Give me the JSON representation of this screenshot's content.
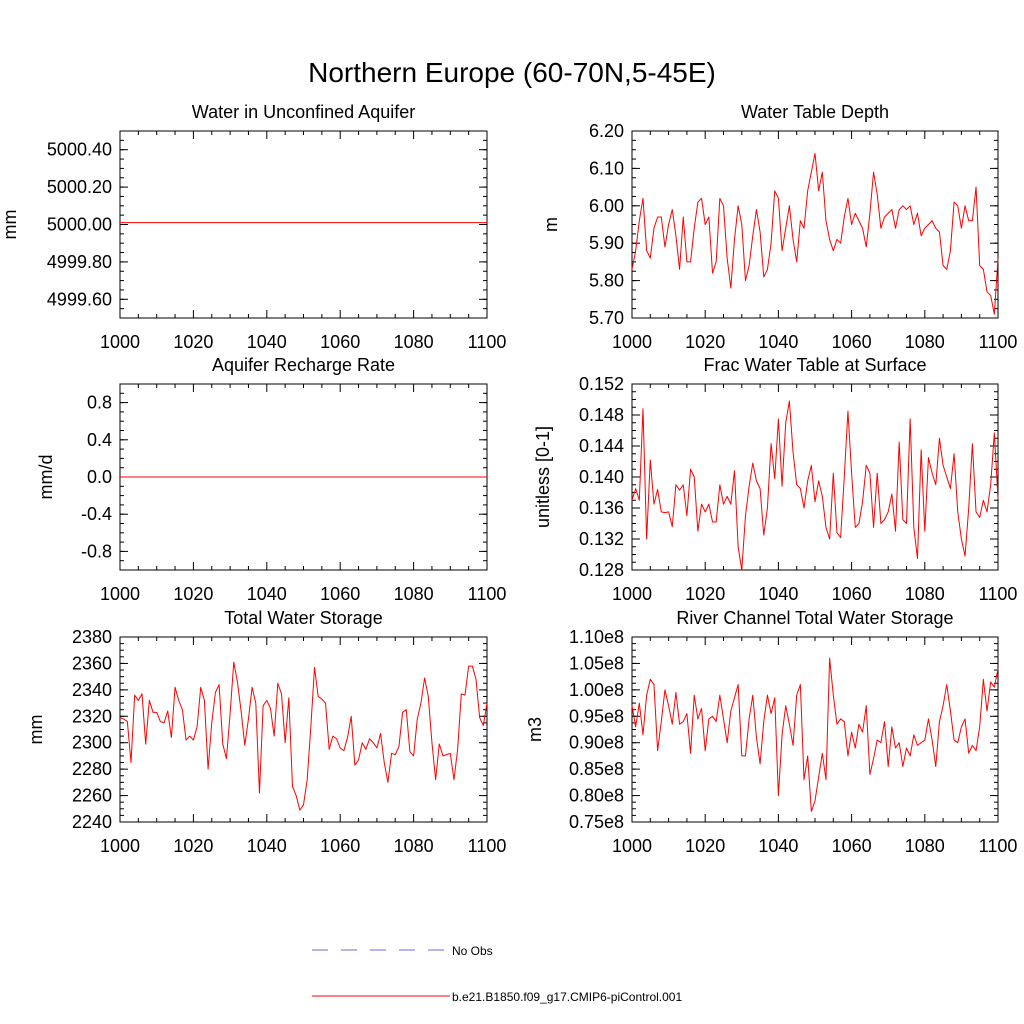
{
  "figure": {
    "title": "Northern Europe (60-70N,5-45E)"
  },
  "legend": {
    "entries": [
      {
        "label": "No Obs",
        "color": "#6b6bd6",
        "style": "dashed"
      },
      {
        "label": "b.e21.B1850.f09_g17.CMIP6-piControl.001",
        "color": "#ff0000",
        "style": "solid"
      }
    ]
  },
  "chart_data": [
    {
      "type": "line",
      "title": "Water in Unconfined Aquifer",
      "ylabel": "mm",
      "xlim": [
        1000,
        1100
      ],
      "ylim": [
        4999.5,
        5000.5
      ],
      "xticks": [
        1000,
        1020,
        1040,
        1060,
        1080,
        1100
      ],
      "yticks": [
        4999.6,
        4999.8,
        5000.0,
        5000.2,
        5000.4
      ],
      "ytick_labels": [
        "4999.60",
        "4999.80",
        "5000.00",
        "5000.20",
        "5000.40"
      ],
      "series": [
        {
          "name": "b.e21.B1850.f09_g17.CMIP6-piControl.001",
          "color": "#ff0000",
          "values": [
            5000.01,
            5000.01,
            5000.01,
            5000.01,
            5000.01,
            5000.01,
            5000.01,
            5000.01,
            5000.01,
            5000.01,
            5000.01,
            5000.01,
            5000.01,
            5000.01,
            5000.01,
            5000.01,
            5000.01,
            5000.01,
            5000.01,
            5000.01,
            5000.01,
            5000.01,
            5000.01,
            5000.01,
            5000.01,
            5000.01,
            5000.01,
            5000.01,
            5000.01,
            5000.01,
            5000.01,
            5000.01,
            5000.01,
            5000.01,
            5000.01,
            5000.01,
            5000.01,
            5000.01,
            5000.01,
            5000.01,
            5000.01,
            5000.01,
            5000.01,
            5000.01,
            5000.01,
            5000.01,
            5000.01,
            5000.01,
            5000.01,
            5000.01,
            5000.01,
            5000.01,
            5000.01,
            5000.01,
            5000.01,
            5000.01,
            5000.01,
            5000.01,
            5000.01,
            5000.01,
            5000.01,
            5000.01,
            5000.01,
            5000.01,
            5000.01,
            5000.01,
            5000.01,
            5000.01,
            5000.01,
            5000.01,
            5000.01,
            5000.01,
            5000.01,
            5000.01,
            5000.01,
            5000.01,
            5000.01,
            5000.01,
            5000.01,
            5000.01,
            5000.01,
            5000.01,
            5000.01,
            5000.01,
            5000.01,
            5000.01,
            5000.01,
            5000.01,
            5000.01,
            5000.01,
            5000.01,
            5000.01,
            5000.01,
            5000.01,
            5000.01,
            5000.01,
            5000.01,
            5000.01,
            5000.01,
            5000.01,
            5000.01
          ]
        }
      ]
    },
    {
      "type": "line",
      "title": "Water Table Depth",
      "ylabel": "m",
      "xlim": [
        1000,
        1100
      ],
      "ylim": [
        5.7,
        6.2
      ],
      "xticks": [
        1000,
        1020,
        1040,
        1060,
        1080,
        1100
      ],
      "yticks": [
        5.7,
        5.8,
        5.9,
        6.0,
        6.1,
        6.2
      ],
      "ytick_labels": [
        "5.70",
        "5.80",
        "5.90",
        "6.00",
        "6.10",
        "6.20"
      ],
      "series": [
        {
          "name": "b.e21.B1850.f09_g17.CMIP6-piControl.001",
          "color": "#ff0000",
          "values": [
            5.83,
            5.88,
            5.96,
            6.02,
            5.88,
            5.86,
            5.94,
            5.97,
            5.97,
            5.89,
            5.95,
            5.99,
            5.92,
            5.83,
            5.97,
            5.85,
            5.85,
            5.94,
            6.01,
            6.02,
            5.95,
            5.97,
            5.82,
            5.85,
            6.02,
            6.0,
            5.86,
            5.78,
            5.91,
            6.0,
            5.95,
            5.8,
            5.84,
            5.92,
            5.99,
            5.93,
            5.81,
            5.83,
            5.9,
            6.04,
            6.02,
            5.88,
            5.94,
            6.0,
            5.91,
            5.85,
            5.96,
            5.94,
            6.04,
            6.09,
            6.14,
            6.04,
            6.09,
            5.96,
            5.91,
            5.88,
            5.91,
            5.9,
            5.97,
            6.02,
            5.95,
            5.98,
            5.96,
            5.94,
            5.89,
            5.98,
            6.09,
            6.03,
            5.94,
            5.97,
            5.98,
            5.99,
            5.94,
            5.99,
            6.0,
            5.99,
            6.0,
            5.95,
            5.98,
            5.92,
            5.94,
            5.95,
            5.96,
            5.94,
            5.93,
            5.84,
            5.83,
            5.88,
            6.01,
            6.0,
            5.94,
            6.0,
            5.96,
            5.96,
            6.05,
            5.84,
            5.83,
            5.77,
            5.76,
            5.71,
            5.86
          ]
        }
      ]
    },
    {
      "type": "line",
      "title": "Aquifer Recharge Rate",
      "ylabel": "mm/d",
      "xlim": [
        1000,
        1100
      ],
      "ylim": [
        -1.0,
        1.0
      ],
      "xticks": [
        1000,
        1020,
        1040,
        1060,
        1080,
        1100
      ],
      "yticks": [
        -0.8,
        -0.4,
        0.0,
        0.4,
        0.8
      ],
      "ytick_labels": [
        "-0.8",
        "-0.4",
        "0.0",
        "0.4",
        "0.8"
      ],
      "series": [
        {
          "name": "b.e21.B1850.f09_g17.CMIP6-piControl.001",
          "color": "#ff0000",
          "values": [
            0,
            0,
            0,
            0,
            0,
            0,
            0,
            0,
            0,
            0,
            0,
            0,
            0,
            0,
            0,
            0,
            0,
            0,
            0,
            0,
            0,
            0,
            0,
            0,
            0,
            0,
            0,
            0,
            0,
            0,
            0,
            0,
            0,
            0,
            0,
            0,
            0,
            0,
            0,
            0,
            0,
            0,
            0,
            0,
            0,
            0,
            0,
            0,
            0,
            0,
            0,
            0,
            0,
            0,
            0,
            0,
            0,
            0,
            0,
            0,
            0,
            0,
            0,
            0,
            0,
            0,
            0,
            0,
            0,
            0,
            0,
            0,
            0,
            0,
            0,
            0,
            0,
            0,
            0,
            0,
            0,
            0,
            0,
            0,
            0,
            0,
            0,
            0,
            0,
            0,
            0,
            0,
            0,
            0,
            0,
            0,
            0,
            0,
            0,
            0,
            0
          ]
        }
      ]
    },
    {
      "type": "line",
      "title": "Frac Water Table at Surface",
      "ylabel": "unitless [0-1]",
      "xlim": [
        1000,
        1100
      ],
      "ylim": [
        0.128,
        0.152
      ],
      "xticks": [
        1000,
        1020,
        1040,
        1060,
        1080,
        1100
      ],
      "yticks": [
        0.128,
        0.132,
        0.136,
        0.14,
        0.144,
        0.148,
        0.152
      ],
      "ytick_labels": [
        "0.128",
        "0.132",
        "0.136",
        "0.140",
        "0.144",
        "0.148",
        "0.152"
      ],
      "series": [
        {
          "name": "b.e21.B1850.f09_g17.CMIP6-piControl.001",
          "color": "#ff0000",
          "values": [
            0.137,
            0.1385,
            0.137,
            0.1488,
            0.132,
            0.1422,
            0.1365,
            0.1384,
            0.1355,
            0.1354,
            0.1355,
            0.1336,
            0.139,
            0.1383,
            0.139,
            0.135,
            0.141,
            0.14,
            0.133,
            0.1365,
            0.1355,
            0.1365,
            0.1342,
            0.1342,
            0.139,
            0.1365,
            0.1375,
            0.1365,
            0.1408,
            0.131,
            0.128,
            0.135,
            0.1388,
            0.1418,
            0.1395,
            0.1385,
            0.1325,
            0.136,
            0.1443,
            0.1398,
            0.1475,
            0.1388,
            0.147,
            0.1498,
            0.1432,
            0.139,
            0.1385,
            0.136,
            0.1395,
            0.1415,
            0.1368,
            0.1395,
            0.1375,
            0.1335,
            0.132,
            0.1405,
            0.1328,
            0.1322,
            0.14,
            0.1485,
            0.1405,
            0.1335,
            0.134,
            0.1368,
            0.1415,
            0.1405,
            0.1335,
            0.1405,
            0.134,
            0.1345,
            0.1355,
            0.1378,
            0.133,
            0.1445,
            0.1345,
            0.134,
            0.1475,
            0.1335,
            0.1295,
            0.1435,
            0.133,
            0.1425,
            0.1405,
            0.139,
            0.145,
            0.1415,
            0.14,
            0.1385,
            0.143,
            0.1355,
            0.132,
            0.1298,
            0.136,
            0.1443,
            0.1355,
            0.1348,
            0.137,
            0.1355,
            0.139,
            0.1457,
            0.1372
          ]
        }
      ]
    },
    {
      "type": "line",
      "title": "Total Water Storage",
      "ylabel": "mm",
      "xlim": [
        1000,
        1100
      ],
      "ylim": [
        2240,
        2380
      ],
      "xticks": [
        1000,
        1020,
        1040,
        1060,
        1080,
        1100
      ],
      "yticks": [
        2240,
        2260,
        2280,
        2300,
        2320,
        2340,
        2360,
        2380
      ],
      "ytick_labels": [
        "2240",
        "2260",
        "2280",
        "2300",
        "2320",
        "2340",
        "2360",
        "2380"
      ],
      "series": [
        {
          "name": "b.e21.B1850.f09_g17.CMIP6-piControl.001",
          "color": "#ff0000",
          "values": [
            2319,
            2318,
            2316,
            2285,
            2336,
            2332,
            2337,
            2299,
            2332,
            2323,
            2323,
            2316,
            2315,
            2324,
            2304,
            2342,
            2332,
            2325,
            2302,
            2305,
            2302,
            2312,
            2342,
            2332,
            2280,
            2315,
            2338,
            2344,
            2299,
            2288,
            2322,
            2361,
            2346,
            2324,
            2298,
            2318,
            2342,
            2330,
            2262,
            2328,
            2332,
            2326,
            2305,
            2345,
            2337,
            2300,
            2334,
            2267,
            2260,
            2249,
            2253,
            2272,
            2312,
            2357,
            2335,
            2333,
            2330,
            2295,
            2305,
            2303,
            2296,
            2294,
            2304,
            2320,
            2283,
            2287,
            2300,
            2295,
            2303,
            2300,
            2296,
            2307,
            2285,
            2270,
            2292,
            2291,
            2297,
            2323,
            2325,
            2293,
            2290,
            2318,
            2330,
            2349,
            2335,
            2300,
            2272,
            2299,
            2290,
            2291,
            2292,
            2272,
            2295,
            2337,
            2336,
            2358,
            2358,
            2348,
            2319,
            2313,
            2330
          ]
        }
      ]
    },
    {
      "type": "line",
      "title": "River Channel Total Water Storage",
      "ylabel": "m3",
      "xlim": [
        1000,
        1100
      ],
      "ylim": [
        75000000,
        110000000
      ],
      "xticks": [
        1000,
        1020,
        1040,
        1060,
        1080,
        1100
      ],
      "yticks": [
        75000000,
        80000000,
        85000000,
        90000000,
        95000000,
        100000000,
        105000000,
        110000000
      ],
      "ytick_labels": [
        "0.75e8",
        "0.80e8",
        "0.85e8",
        "0.90e8",
        "0.95e8",
        "1.00e8",
        "1.05e8",
        "1.10e8"
      ],
      "series": [
        {
          "name": "b.e21.B1850.f09_g17.CMIP6-piControl.001",
          "color": "#ff0000",
          "values": [
            97000000,
            93000000,
            97500000,
            91500000,
            99000000,
            102000000,
            101000000,
            88500000,
            94000000,
            100000000,
            97000000,
            93500000,
            99500000,
            93500000,
            94000000,
            95500000,
            88000000,
            99000000,
            94500000,
            96500000,
            88500000,
            94500000,
            95000000,
            94000000,
            99000000,
            94500000,
            90000000,
            96000000,
            98500000,
            101000000,
            87500000,
            87500000,
            94500000,
            99000000,
            91000000,
            86000000,
            94000000,
            99000000,
            95500000,
            98500000,
            80000000,
            91500000,
            97000000,
            93500000,
            89500000,
            99000000,
            101000000,
            83000000,
            87500000,
            77000000,
            79000000,
            83500000,
            88000000,
            83000000,
            106000000,
            99000000,
            93500000,
            94500000,
            94000000,
            87500000,
            92000000,
            89000000,
            93500000,
            92000000,
            97000000,
            84000000,
            87000000,
            90500000,
            90000000,
            94000000,
            85500000,
            93000000,
            89000000,
            90000000,
            85500000,
            89000000,
            87500000,
            91500000,
            89500000,
            90000000,
            90500000,
            94500000,
            90500000,
            85500000,
            94000000,
            97000000,
            101000000,
            96000000,
            90500000,
            90000000,
            93000000,
            94500000,
            88000000,
            89500000,
            88500000,
            93000000,
            102000000,
            96000000,
            101500000,
            100500000,
            104000000
          ]
        }
      ]
    }
  ]
}
